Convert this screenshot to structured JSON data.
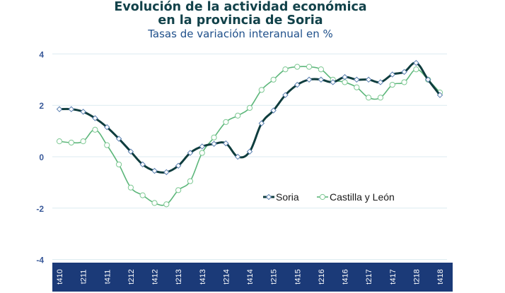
{
  "chart_data": {
    "type": "line",
    "title": "Evolución de la actividad económica",
    "title_line2": "en la provincia de Soria",
    "subtitle": "Tasas de variación interanual en %",
    "xlabel": "",
    "ylabel": "",
    "x_tick_labels": [
      "t410",
      "t211",
      "t411",
      "t212",
      "t412",
      "t213",
      "t413",
      "t214",
      "t414",
      "t215",
      "t415",
      "t216",
      "t416",
      "t217",
      "t417",
      "t218",
      "t418"
    ],
    "ylim": [
      -4,
      4
    ],
    "y_ticks": [
      -4,
      -2,
      0,
      2,
      4
    ],
    "grid": true,
    "legend_position": "center-right",
    "series": [
      {
        "name": "Soria",
        "color": "#0f3d3e",
        "marker_edge": "#5a7fb0",
        "values": [
          1.85,
          1.85,
          1.75,
          1.5,
          1.15,
          0.7,
          0.2,
          -0.3,
          -0.55,
          -0.6,
          -0.35,
          0.15,
          0.4,
          0.5,
          0.52,
          0.0,
          0.2,
          1.3,
          1.8,
          2.4,
          2.8,
          3.0,
          3.0,
          2.9,
          3.1,
          3.0,
          3.0,
          2.9,
          3.2,
          3.3,
          3.65,
          3.0,
          2.4
        ]
      },
      {
        "name": "Castilla y León",
        "color": "#5cb67a",
        "marker_edge": "#7cc892",
        "values": [
          0.6,
          0.55,
          0.6,
          1.05,
          0.45,
          -0.3,
          -1.2,
          -1.5,
          -1.8,
          -1.85,
          -1.3,
          -0.95,
          0.15,
          0.75,
          1.35,
          1.6,
          1.9,
          2.6,
          3.0,
          3.4,
          3.5,
          3.5,
          3.4,
          3.0,
          2.9,
          2.7,
          2.3,
          2.3,
          2.8,
          2.9,
          3.4,
          3.0,
          2.5
        ]
      }
    ],
    "colors": {
      "axis_band": "#1b3a78",
      "axis_text": "#3a5a9a",
      "grid": "#dcebf0"
    }
  }
}
